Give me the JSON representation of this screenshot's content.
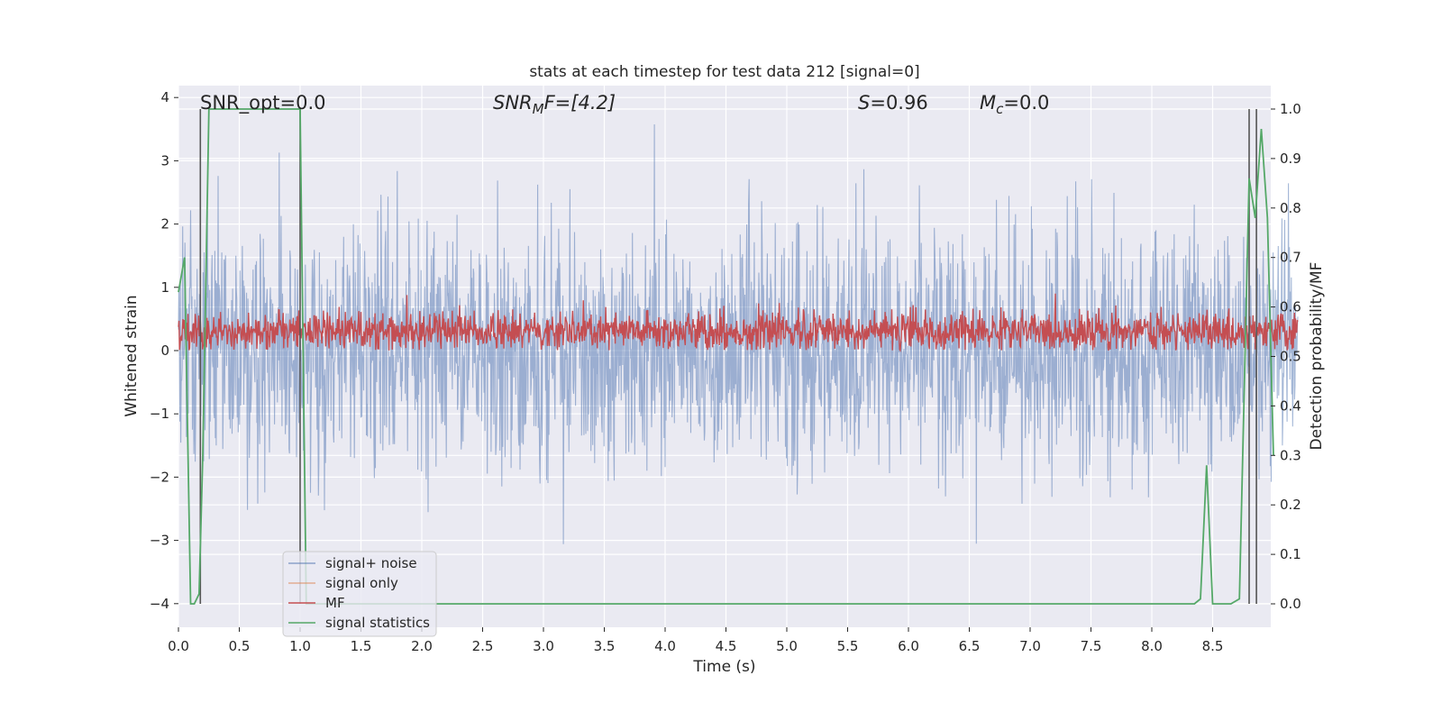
{
  "chart_data": {
    "type": "line",
    "title": "stats at each timestep for test data 212 [signal=0]",
    "xlabel": "Time (s)",
    "ylabel_left": "Whitened strain",
    "ylabel_right": "Detection probability/MF",
    "xlim": [
      0,
      9.2
    ],
    "ylim_left": [
      -4.4,
      4.2
    ],
    "ylim_right": [
      -0.05,
      1.04
    ],
    "x_ticks": [
      "0.0",
      "0.5",
      "1.0",
      "1.5",
      "2.0",
      "2.5",
      "3.0",
      "3.5",
      "4.0",
      "4.5",
      "5.0",
      "5.5",
      "6.0",
      "6.5",
      "7.0",
      "7.5",
      "8.0",
      "8.5"
    ],
    "y_ticks_left": [
      "−4",
      "−3",
      "−2",
      "−1",
      "0",
      "1",
      "2",
      "3",
      "4"
    ],
    "y_ticks_right": [
      "0.0",
      "0.1",
      "0.2",
      "0.3",
      "0.4",
      "0.5",
      "0.6",
      "0.7",
      "0.8",
      "0.9",
      "1.0"
    ],
    "grid": true,
    "legend_position": "lower-left",
    "annotations": {
      "snr_opt": "SNR_opt=0.0",
      "snr_mf_main": "SNR",
      "snr_mf_sub": "M",
      "snr_mf_rest": "F=[4.2]",
      "s_main": "S",
      "s_rest": "=0.96",
      "mc_main": "M",
      "mc_sub": "c",
      "mc_rest": "=0.0"
    },
    "series": [
      {
        "name": "signal+ noise",
        "color": "#4c72b0",
        "axis": "left",
        "description_values": {
          "band_low_typical": -1.6,
          "band_high_typical": 1.6,
          "max": 3.6,
          "min": -3.6
        }
      },
      {
        "name": "signal only",
        "color": "#dd8452",
        "axis": "left",
        "values": []
      },
      {
        "name": "MF",
        "color": "#c44e52",
        "axis": "left",
        "description_values": {
          "low": 0.0,
          "high": 0.9
        }
      },
      {
        "name": "signal statistics",
        "color": "#55a868",
        "axis": "right",
        "x": [
          0.0,
          0.05,
          0.1,
          0.13,
          0.17,
          0.2,
          0.25,
          0.3,
          1.0,
          1.02,
          1.05,
          1.1,
          8.35,
          8.4,
          8.45,
          8.5,
          8.55,
          8.65,
          8.72,
          8.8,
          8.85,
          8.9,
          8.95,
          9.0
        ],
        "y": [
          0.63,
          0.7,
          0.0,
          0.0,
          0.02,
          0.3,
          1.0,
          1.0,
          1.0,
          0.6,
          0.0,
          0.0,
          0.0,
          0.01,
          0.28,
          0.0,
          0.0,
          0.0,
          0.01,
          0.86,
          0.78,
          0.96,
          0.78,
          0.3
        ]
      }
    ],
    "vertical_lines_x": [
      0.18,
      1.0,
      8.8,
      8.86
    ]
  }
}
